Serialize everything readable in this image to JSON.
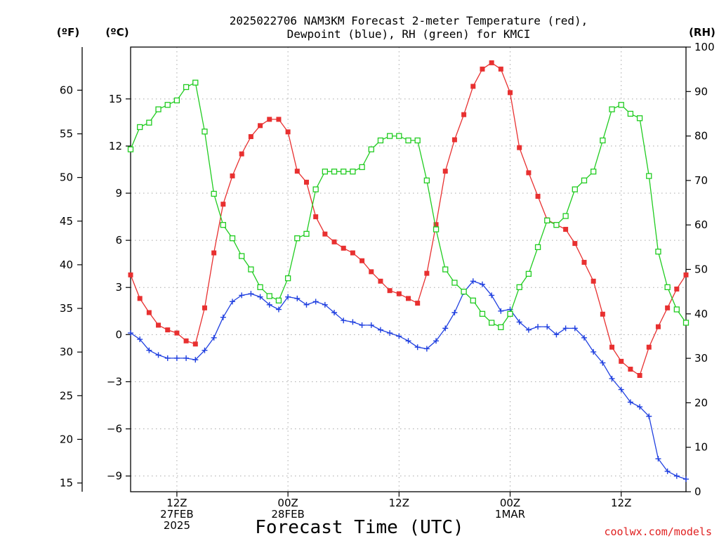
{
  "chart_data": {
    "type": "line",
    "title": [
      "2025022706 NAM3KM Forecast 2-meter Temperature (red),",
      "Dewpoint (blue), RH (green) for KMCI"
    ],
    "xlabel": "Forecast Time (UTC)",
    "units": {
      "fahrenheit": "(ºF)",
      "celsius": "(ºC)",
      "rh": "(RH)"
    },
    "credit": "coolwx.com/models",
    "x_start_hour": 7,
    "x_end_hour": 67,
    "x_ticks": [
      {
        "hour": 12,
        "lines": [
          "12Z",
          "27FEB",
          "2025"
        ]
      },
      {
        "hour": 24,
        "lines": [
          "00Z",
          "28FEB"
        ]
      },
      {
        "hour": 36,
        "lines": [
          "12Z"
        ]
      },
      {
        "hour": 48,
        "lines": [
          "00Z",
          "1MAR"
        ]
      },
      {
        "hour": 60,
        "lines": [
          "12Z"
        ]
      }
    ],
    "y_celsius": {
      "ylim": [
        -10,
        18.3
      ],
      "ticks": [
        -9,
        -6,
        -3,
        0,
        3,
        6,
        9,
        12,
        15
      ],
      "tick_labels": [
        "−9",
        "−6",
        "−3",
        "0",
        "3",
        "6",
        "9",
        "12",
        "15"
      ]
    },
    "y_fahrenheit": {
      "ticks": [
        15,
        20,
        25,
        30,
        35,
        40,
        45,
        50,
        55,
        60
      ],
      "tick_labels": [
        "15",
        "20",
        "25",
        "30",
        "35",
        "40",
        "45",
        "50",
        "55",
        "60"
      ]
    },
    "y_rh": {
      "ylim": [
        0,
        100
      ],
      "ticks": [
        0,
        10,
        20,
        30,
        40,
        50,
        60,
        70,
        80,
        90,
        100
      ],
      "tick_labels": [
        "0",
        "10",
        "20",
        "30",
        "40",
        "50",
        "60",
        "70",
        "80",
        "90",
        "100"
      ]
    },
    "grid": true,
    "series": [
      {
        "name": "Temperature",
        "unit": "C",
        "color": "#e83030",
        "marker": "filled-square",
        "values": [
          3.8,
          2.3,
          1.4,
          0.6,
          0.3,
          0.1,
          -0.4,
          -0.6,
          1.7,
          5.2,
          8.3,
          10.1,
          11.5,
          12.6,
          13.3,
          13.7,
          13.7,
          12.9,
          10.4,
          9.7,
          7.5,
          6.4,
          5.9,
          5.5,
          5.2,
          4.7,
          4.0,
          3.4,
          2.8,
          2.6,
          2.3,
          2.0,
          3.9,
          7.0,
          10.4,
          12.4,
          14.0,
          15.8,
          16.9,
          17.3,
          16.9,
          15.4,
          11.9,
          10.3,
          8.8,
          7.3,
          7.0,
          6.7,
          5.8,
          4.6,
          3.4,
          1.3,
          -0.8,
          -1.7,
          -2.2,
          -2.6,
          -0.8,
          0.5,
          1.7,
          2.9,
          3.8
        ]
      },
      {
        "name": "Dewpoint",
        "unit": "C",
        "color": "#2040e0",
        "marker": "plus",
        "values": [
          0.1,
          -0.3,
          -1.0,
          -1.3,
          -1.5,
          -1.5,
          -1.5,
          -1.6,
          -1.0,
          -0.2,
          1.1,
          2.1,
          2.5,
          2.6,
          2.4,
          1.9,
          1.6,
          2.4,
          2.3,
          1.9,
          2.1,
          1.9,
          1.4,
          0.9,
          0.8,
          0.6,
          0.6,
          0.3,
          0.1,
          -0.1,
          -0.4,
          -0.8,
          -0.9,
          -0.4,
          0.4,
          1.4,
          2.7,
          3.4,
          3.2,
          2.5,
          1.5,
          1.6,
          0.8,
          0.3,
          0.5,
          0.5,
          0.0,
          0.4,
          0.4,
          -0.2,
          -1.1,
          -1.8,
          -2.8,
          -3.5,
          -4.3,
          -4.6,
          -5.2,
          -7.9,
          -8.7,
          -9.0,
          -9.2
        ]
      },
      {
        "name": "RH",
        "unit": "%",
        "color": "#20cc20",
        "marker": "open-square",
        "values": [
          77,
          82,
          83,
          86,
          87,
          88,
          91,
          92,
          81,
          67,
          60,
          57,
          53,
          50,
          46,
          44,
          43,
          48,
          57,
          58,
          68,
          72,
          72,
          72,
          72,
          73,
          77,
          79,
          80,
          80,
          79,
          79,
          70,
          59,
          50,
          47,
          45,
          43,
          40,
          38,
          37,
          40,
          46,
          49,
          55,
          61,
          60,
          62,
          68,
          70,
          72,
          79,
          86,
          87,
          85,
          84,
          71,
          54,
          46,
          41,
          38
        ]
      }
    ]
  }
}
